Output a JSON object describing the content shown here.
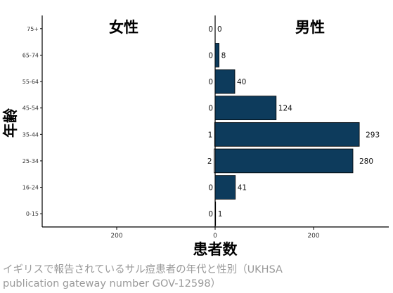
{
  "chart_data": {
    "type": "bar",
    "orientation": "horizontal",
    "layout": "population-pyramid",
    "categories": [
      "0-15",
      "16-24",
      "25-34",
      "35-44",
      "45-54",
      "55-64",
      "65-74",
      "75+"
    ],
    "series": [
      {
        "name": "女性",
        "values": [
          0,
          0,
          2,
          1,
          0,
          0,
          0,
          0
        ],
        "color": "#ffffff"
      },
      {
        "name": "男性",
        "values": [
          1,
          41,
          280,
          293,
          124,
          40,
          8,
          0
        ],
        "color": "#0d3b5c"
      }
    ],
    "xlabel": "患者数",
    "ylabel": "年齢",
    "xlim": [
      -350,
      350
    ],
    "xticks": [
      200,
      0,
      200
    ],
    "legend": "none",
    "grid": false
  },
  "caption": {
    "line1": "イギリスで報告されているサル痘患者の年代と性別（UKHSA",
    "line2": "publication gateway number GOV-12598）"
  }
}
